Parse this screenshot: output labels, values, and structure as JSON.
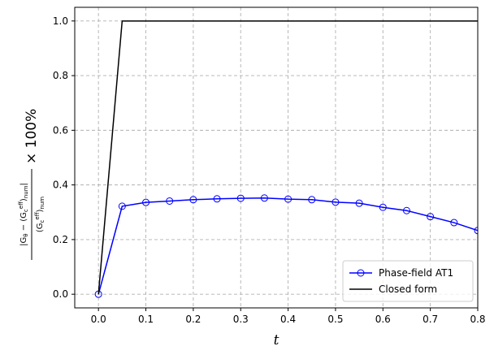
{
  "chart_data": {
    "type": "line",
    "xlabel": "t",
    "ylabel": "|G_θ − (G_c^eff)_num| / (G_c^eff)_num × 100%",
    "xlim": [
      -0.05,
      0.8
    ],
    "ylim": [
      -0.05,
      1.05
    ],
    "x_ticks": [
      "0.0",
      "0.1",
      "0.2",
      "0.3",
      "0.4",
      "0.5",
      "0.6",
      "0.7",
      "0.8"
    ],
    "y_ticks": [
      "0.0",
      "0.2",
      "0.4",
      "0.6",
      "0.8",
      "1.0"
    ],
    "grid": true,
    "legend_position": "lower-right",
    "series": [
      {
        "name": "Phase-field AT1",
        "color": "#0000ff",
        "marker": "open-circle",
        "x": [
          0.0,
          0.05,
          0.1,
          0.15,
          0.2,
          0.25,
          0.3,
          0.35,
          0.4,
          0.45,
          0.5,
          0.55,
          0.6,
          0.65,
          0.7,
          0.75,
          0.8
        ],
        "y": [
          0.0,
          0.322,
          0.336,
          0.341,
          0.346,
          0.349,
          0.351,
          0.352,
          0.348,
          0.346,
          0.337,
          0.333,
          0.318,
          0.306,
          0.284,
          0.262,
          0.233
        ]
      },
      {
        "name": "Closed form",
        "color": "#000000",
        "marker": "none",
        "x": [
          0.0,
          0.05,
          0.8
        ],
        "y": [
          0.0,
          1.0,
          1.0
        ]
      }
    ]
  }
}
